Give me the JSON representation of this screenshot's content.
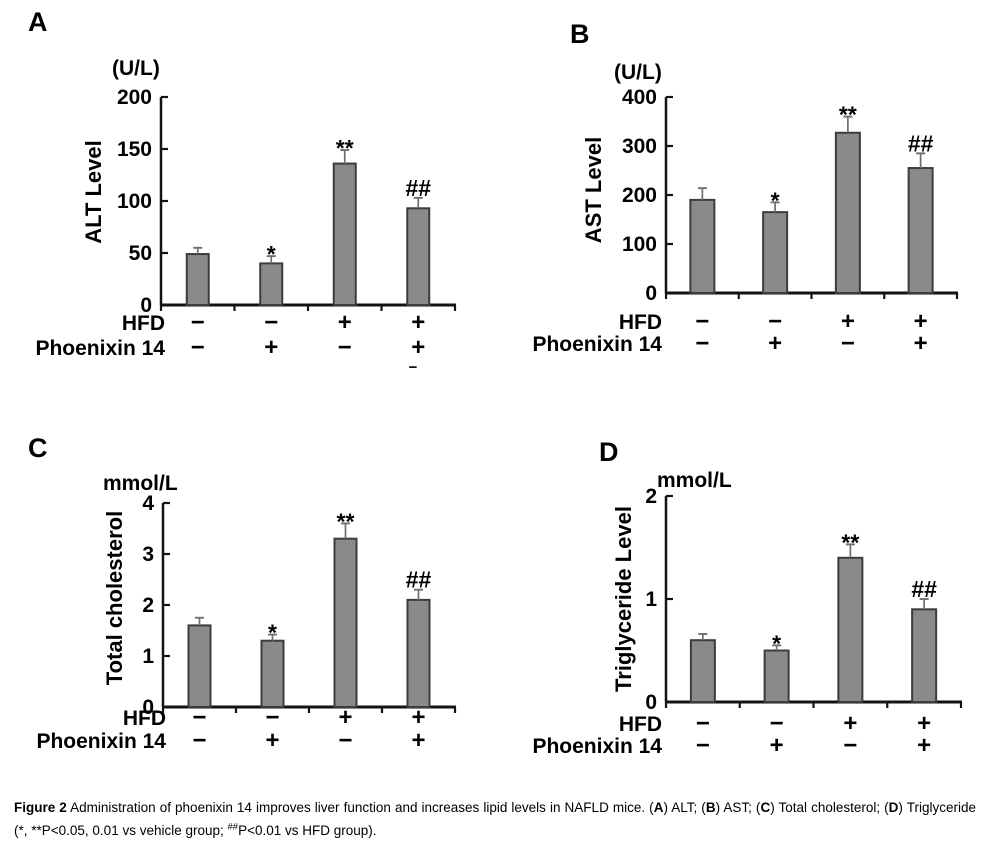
{
  "figure": {
    "title": "Figure 2",
    "caption_segments": [
      {
        "text": "Figure 2",
        "bold": true
      },
      {
        "text": " Administration of phoenixin 14 improves liver function and increases lipid levels in NAFLD mice. ("
      },
      {
        "text": "A",
        "bold": true
      },
      {
        "text": ") ALT; ("
      },
      {
        "text": "B",
        "bold": true
      },
      {
        "text": ") AST; ("
      },
      {
        "text": "C",
        "bold": true
      },
      {
        "text": ") Total cholesterol; ("
      },
      {
        "text": "D",
        "bold": true
      },
      {
        "text": ") Triglyceride (*, **P<0.05, 0.01 vs vehicle group; "
      },
      {
        "text": "##",
        "sup": true
      },
      {
        "text": "P<0.01 vs HFD group)."
      }
    ],
    "stray_mark": "-"
  },
  "colors": {
    "background": "#ffffff",
    "bar_fill": "#8a8a8a",
    "bar_stroke": "#3c3c3c",
    "error_bar": "#6f6f6f",
    "axis": "#131313",
    "text": "#000000"
  },
  "chart_data": [
    {
      "type": "bar",
      "panel": "A",
      "unit": "(U/L)",
      "ylabel": "ALT Level",
      "ylim": [
        0,
        200
      ],
      "yticks": [
        0,
        50,
        100,
        150,
        200
      ],
      "categories": [
        "vehicle",
        "phoenixin 14",
        "HFD",
        "HFD + phoenixin 14"
      ],
      "values": [
        49,
        40,
        136,
        93
      ],
      "errors": [
        6,
        7,
        13,
        10
      ],
      "annotations": [
        "",
        "*",
        "**",
        "##"
      ],
      "x_rows": [
        {
          "label": "HFD",
          "values": [
            "-",
            "-",
            "+",
            "+"
          ]
        },
        {
          "label": "Phoenixin 14",
          "values": [
            "-",
            "+",
            "-",
            "+"
          ]
        }
      ],
      "grid": false,
      "legend": "none"
    },
    {
      "type": "bar",
      "panel": "B",
      "unit": "(U/L)",
      "ylabel": "AST Level",
      "ylim": [
        0,
        400
      ],
      "yticks": [
        0,
        100,
        200,
        300,
        400
      ],
      "categories": [
        "vehicle",
        "phoenixin 14",
        "HFD",
        "HFD + phoenixin 14"
      ],
      "values": [
        190,
        165,
        327,
        255
      ],
      "errors": [
        24,
        20,
        33,
        30
      ],
      "annotations": [
        "",
        "*",
        "**",
        "##"
      ],
      "x_rows": [
        {
          "label": "HFD",
          "values": [
            "-",
            "-",
            "+",
            "+"
          ]
        },
        {
          "label": "Phoenixin 14",
          "values": [
            "-",
            "+",
            "-",
            "+"
          ]
        }
      ],
      "grid": false,
      "legend": "none"
    },
    {
      "type": "bar",
      "panel": "C",
      "unit": "mmol/L",
      "ylabel": "Total cholesterol",
      "ylim": [
        0,
        4
      ],
      "yticks": [
        0,
        1,
        2,
        3,
        4
      ],
      "categories": [
        "vehicle",
        "phoenixin 14",
        "HFD",
        "HFD + phoenixin 14"
      ],
      "values": [
        1.6,
        1.3,
        3.3,
        2.1
      ],
      "errors": [
        0.15,
        0.12,
        0.3,
        0.2
      ],
      "annotations": [
        "",
        "*",
        "**",
        "##"
      ],
      "x_rows": [
        {
          "label": "HFD",
          "values": [
            "-",
            "-",
            "+",
            "+"
          ]
        },
        {
          "label": "Phoenixin 14",
          "values": [
            "-",
            "+",
            "-",
            "+"
          ]
        }
      ],
      "grid": false,
      "legend": "none"
    },
    {
      "type": "bar",
      "panel": "D",
      "unit": "mmol/L",
      "ylabel": "Triglyceride Level",
      "ylim": [
        0,
        2
      ],
      "yticks": [
        0,
        1,
        2
      ],
      "categories": [
        "vehicle",
        "phoenixin 14",
        "HFD",
        "HFD + phoenixin 14"
      ],
      "values": [
        0.6,
        0.5,
        1.4,
        0.9
      ],
      "errors": [
        0.06,
        0.05,
        0.13,
        0.1
      ],
      "annotations": [
        "",
        "*",
        "**",
        "##"
      ],
      "x_rows": [
        {
          "label": "HFD",
          "values": [
            "-",
            "-",
            "+",
            "+"
          ]
        },
        {
          "label": "Phoenixin 14",
          "values": [
            "-",
            "+",
            "-",
            "+"
          ]
        }
      ],
      "grid": false,
      "legend": "none"
    }
  ]
}
